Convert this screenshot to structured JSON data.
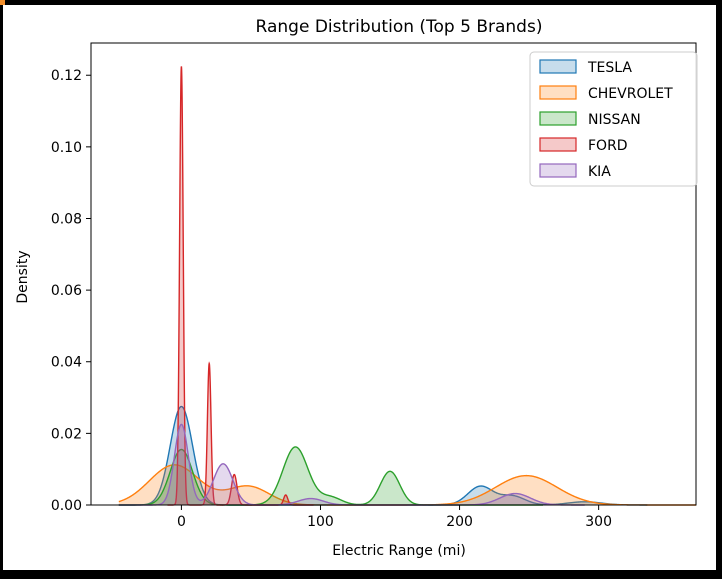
{
  "chart_data": {
    "type": "area",
    "title": "Range Distribution (Top 5 Brands)",
    "xlabel": "Electric Range (mi)",
    "ylabel": "Density",
    "xlim": [
      -65,
      370
    ],
    "ylim": [
      0,
      0.129
    ],
    "x_ticks": [
      0,
      100,
      200,
      300
    ],
    "x_tick_labels": [
      "0",
      "100",
      "200",
      "300"
    ],
    "y_ticks": [
      0,
      0.02,
      0.04,
      0.06,
      0.08,
      0.1,
      0.12
    ],
    "y_tick_labels": [
      "0.00",
      "0.02",
      "0.04",
      "0.06",
      "0.08",
      "0.10",
      "0.12"
    ],
    "grid": false,
    "legend": "top-right",
    "series": [
      {
        "name": "TESLA",
        "color": "#1f77b4",
        "support": [
          -45,
          335
        ],
        "components": [
          {
            "mu": 0,
            "sigma": 8,
            "amp": 0.0275
          },
          {
            "mu": 215,
            "sigma": 9,
            "amp": 0.0052
          },
          {
            "mu": 238,
            "sigma": 9,
            "amp": 0.0025
          },
          {
            "mu": 290,
            "sigma": 12,
            "amp": 0.0009
          }
        ]
      },
      {
        "name": "CHEVROLET",
        "color": "#ff7f0e",
        "support": [
          -45,
          370
        ],
        "components": [
          {
            "mu": -5,
            "sigma": 18,
            "amp": 0.0112
          },
          {
            "mu": 48,
            "sigma": 15,
            "amp": 0.0052
          },
          {
            "mu": 248,
            "sigma": 22,
            "amp": 0.0082
          }
        ]
      },
      {
        "name": "NISSAN",
        "color": "#2ca02c",
        "support": [
          -45,
          260
        ],
        "components": [
          {
            "mu": 0,
            "sigma": 8,
            "amp": 0.0155
          },
          {
            "mu": 82,
            "sigma": 9,
            "amp": 0.0162
          },
          {
            "mu": 107,
            "sigma": 8,
            "amp": 0.0022
          },
          {
            "mu": 150,
            "sigma": 7,
            "amp": 0.0094
          }
        ]
      },
      {
        "name": "FORD",
        "color": "#d62728",
        "support": [
          -10,
          95
        ],
        "components": [
          {
            "mu": 0,
            "sigma": 1.3,
            "amp": 0.1225
          },
          {
            "mu": 20,
            "sigma": 1.3,
            "amp": 0.0395
          },
          {
            "mu": 38,
            "sigma": 2,
            "amp": 0.0085
          },
          {
            "mu": 75,
            "sigma": 1.5,
            "amp": 0.0028
          }
        ]
      },
      {
        "name": "KIA",
        "color": "#9467bd",
        "support": [
          -45,
          290
        ],
        "components": [
          {
            "mu": 0,
            "sigma": 5,
            "amp": 0.0225
          },
          {
            "mu": 30,
            "sigma": 7,
            "amp": 0.0115
          },
          {
            "mu": 93,
            "sigma": 9,
            "amp": 0.0018
          },
          {
            "mu": 240,
            "sigma": 11,
            "amp": 0.0032
          }
        ]
      }
    ]
  }
}
